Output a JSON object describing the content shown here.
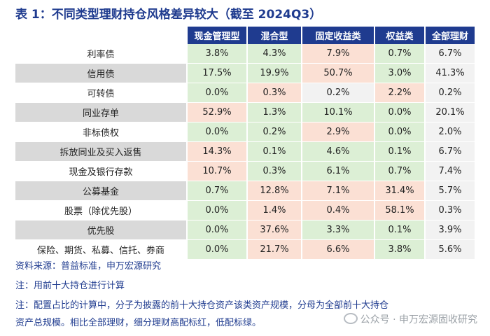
{
  "title": "表 1：不同类型理财持仓风格差异较大（截至 2024Q3）",
  "colors": {
    "header_bg": "#1f3b8f",
    "high": "#fbe0d4",
    "low": "#dcefd5",
    "neutral": "#f2f2f2",
    "text_blue": "#1f3b8f"
  },
  "table": {
    "columns": [
      "现金管理型",
      "混合型",
      "固定收益类",
      "权益类",
      "全部理财"
    ],
    "rows": [
      {
        "label": "利率债",
        "values": [
          "3.8%",
          "4.3%",
          "7.9%",
          "0.7%",
          "6.7%"
        ],
        "colors": [
          "low",
          "low",
          "high",
          "low",
          "neutral"
        ]
      },
      {
        "label": "信用债",
        "values": [
          "17.5%",
          "19.9%",
          "50.7%",
          "3.0%",
          "41.3%"
        ],
        "colors": [
          "low",
          "low",
          "high",
          "low",
          "neutral"
        ]
      },
      {
        "label": "可转债",
        "values": [
          "0.0%",
          "0.3%",
          "0.2%",
          "2.2%",
          "0.2%"
        ],
        "colors": [
          "low",
          "high",
          "neutral",
          "high",
          "neutral"
        ]
      },
      {
        "label": "同业存单",
        "values": [
          "52.9%",
          "1.3%",
          "10.1%",
          "0.0%",
          "20.1%"
        ],
        "colors": [
          "high",
          "low",
          "low",
          "low",
          "neutral"
        ]
      },
      {
        "label": "非标债权",
        "values": [
          "0.0%",
          "0.2%",
          "2.9%",
          "0.0%",
          "2.0%"
        ],
        "colors": [
          "low",
          "low",
          "high",
          "low",
          "neutral"
        ]
      },
      {
        "label": "拆放同业及买入返售",
        "values": [
          "14.3%",
          "0.1%",
          "4.6%",
          "0.1%",
          "6.7%"
        ],
        "colors": [
          "high",
          "low",
          "low",
          "low",
          "neutral"
        ]
      },
      {
        "label": "现金及银行存款",
        "values": [
          "10.7%",
          "0.3%",
          "6.1%",
          "0.7%",
          "7.4%"
        ],
        "colors": [
          "high",
          "low",
          "low",
          "low",
          "neutral"
        ]
      },
      {
        "label": "公募基金",
        "values": [
          "0.7%",
          "12.8%",
          "7.1%",
          "31.4%",
          "5.7%"
        ],
        "colors": [
          "low",
          "high",
          "high",
          "high",
          "neutral"
        ]
      },
      {
        "label": "股票（除优先股）",
        "values": [
          "0.0%",
          "1.4%",
          "0.4%",
          "58.1%",
          "0.3%"
        ],
        "colors": [
          "low",
          "high",
          "high",
          "high",
          "neutral"
        ]
      },
      {
        "label": "优先股",
        "values": [
          "0.0%",
          "37.6%",
          "3.3%",
          "0.1%",
          "3.9%"
        ],
        "colors": [
          "low",
          "high",
          "low",
          "low",
          "neutral"
        ]
      },
      {
        "label": "保险、期货、私募、信托、券商",
        "values": [
          "0.0%",
          "21.7%",
          "6.6%",
          "3.8%",
          "5.6%"
        ],
        "colors": [
          "low",
          "high",
          "high",
          "low",
          "neutral"
        ]
      }
    ]
  },
  "footnotes": [
    "资料来源：普益标准，申万宏源研究",
    "注：用前十大持仓进行计算",
    "注：配置占比的计算中，分子为披露的前十大持仓资产该类资产规模，分母为全部前十大持仓",
    "资产总规模。相比全部理财，细分理财高配标红，低配标绿。"
  ],
  "watermark": "公众号 · 申万宏源固收研究"
}
